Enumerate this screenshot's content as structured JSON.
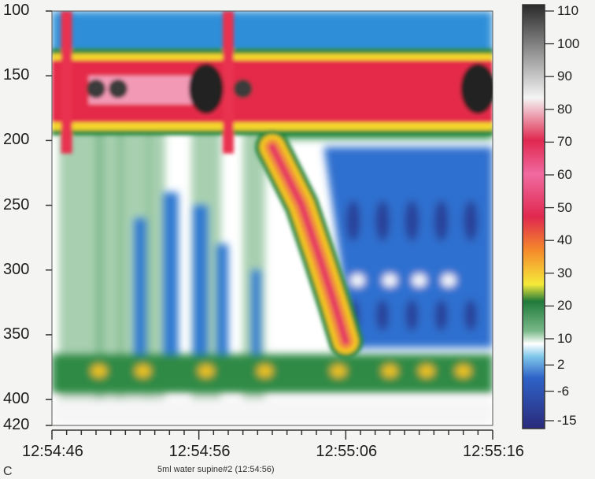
{
  "chart_data": {
    "type": "heatmap",
    "y_axis": {
      "ticks": [
        "100",
        "150",
        "200",
        "250",
        "300",
        "350",
        "400",
        "420"
      ],
      "values": [
        100,
        150,
        200,
        250,
        300,
        350,
        400,
        420
      ],
      "range": [
        100,
        420
      ]
    },
    "x_axis": {
      "ticks": [
        "12:54:46",
        "12:54:56",
        "12:55:06",
        "12:55:16"
      ],
      "seconds": [
        0,
        10,
        20,
        30
      ],
      "range": [
        0,
        30
      ]
    },
    "colorbar": {
      "ticks": [
        "110",
        "100",
        "90",
        "80",
        "70",
        "60",
        "50",
        "40",
        "30",
        "20",
        "10",
        "2",
        "-6",
        "-15"
      ],
      "values": [
        110,
        100,
        90,
        80,
        70,
        60,
        50,
        40,
        30,
        20,
        10,
        2,
        -6,
        -15
      ],
      "range": [
        -15,
        110
      ]
    },
    "caption": "5ml water supine#2 (12:54:56)",
    "corner_text": "C",
    "structures": [
      {
        "name": "upper-band",
        "y_range": [
          135,
          190
        ],
        "value": 75,
        "peaks": [
          {
            "t": 10.5,
            "y": 160,
            "value": 110
          },
          {
            "t": 29,
            "y": 160,
            "value": 110
          }
        ]
      },
      {
        "name": "bolus-pressure-wave",
        "path": [
          [
            15,
            205
          ],
          [
            17,
            250
          ],
          [
            18.2,
            290
          ],
          [
            19.2,
            325
          ],
          [
            20,
            355
          ]
        ],
        "peak_value": 40
      },
      {
        "name": "lower-band",
        "y_range": [
          365,
          395
        ],
        "value": 10
      }
    ],
    "colors": {
      "background": "#f4f4f2",
      "text": "#1d1d1d"
    }
  }
}
